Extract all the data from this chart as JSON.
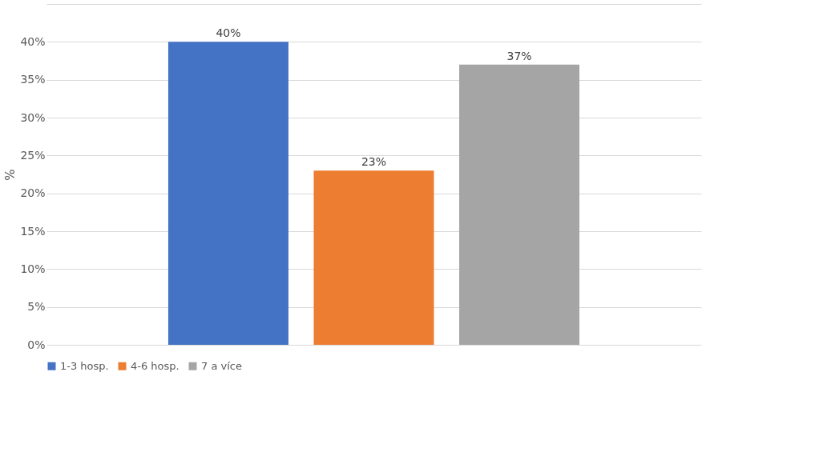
{
  "chart_data": {
    "type": "bar",
    "ylabel": "%",
    "categories": [
      null
    ],
    "series": [
      {
        "name": "1-3 hosp.",
        "color": "#4472c4",
        "values": [
          40
        ],
        "value_labels": [
          "40%"
        ]
      },
      {
        "name": "4-6 hosp.",
        "color": "#ed7d31",
        "values": [
          23
        ],
        "value_labels": [
          "23%"
        ]
      },
      {
        "name": "7 a více",
        "color": "#a5a5a5",
        "values": [
          37
        ],
        "value_labels": [
          "37%"
        ]
      }
    ],
    "ylim": [
      0,
      45
    ],
    "yticks": [
      {
        "value": 0,
        "label": "0%"
      },
      {
        "value": 5,
        "label": "5%"
      },
      {
        "value": 10,
        "label": "10%"
      },
      {
        "value": 15,
        "label": "15%"
      },
      {
        "value": 20,
        "label": "20%"
      },
      {
        "value": 25,
        "label": "25%"
      },
      {
        "value": 30,
        "label": "30%"
      },
      {
        "value": 35,
        "label": "35%"
      },
      {
        "value": 40,
        "label": "40%"
      },
      {
        "value": 45,
        "label": null
      }
    ],
    "grid": "y",
    "legend": "bottom"
  }
}
